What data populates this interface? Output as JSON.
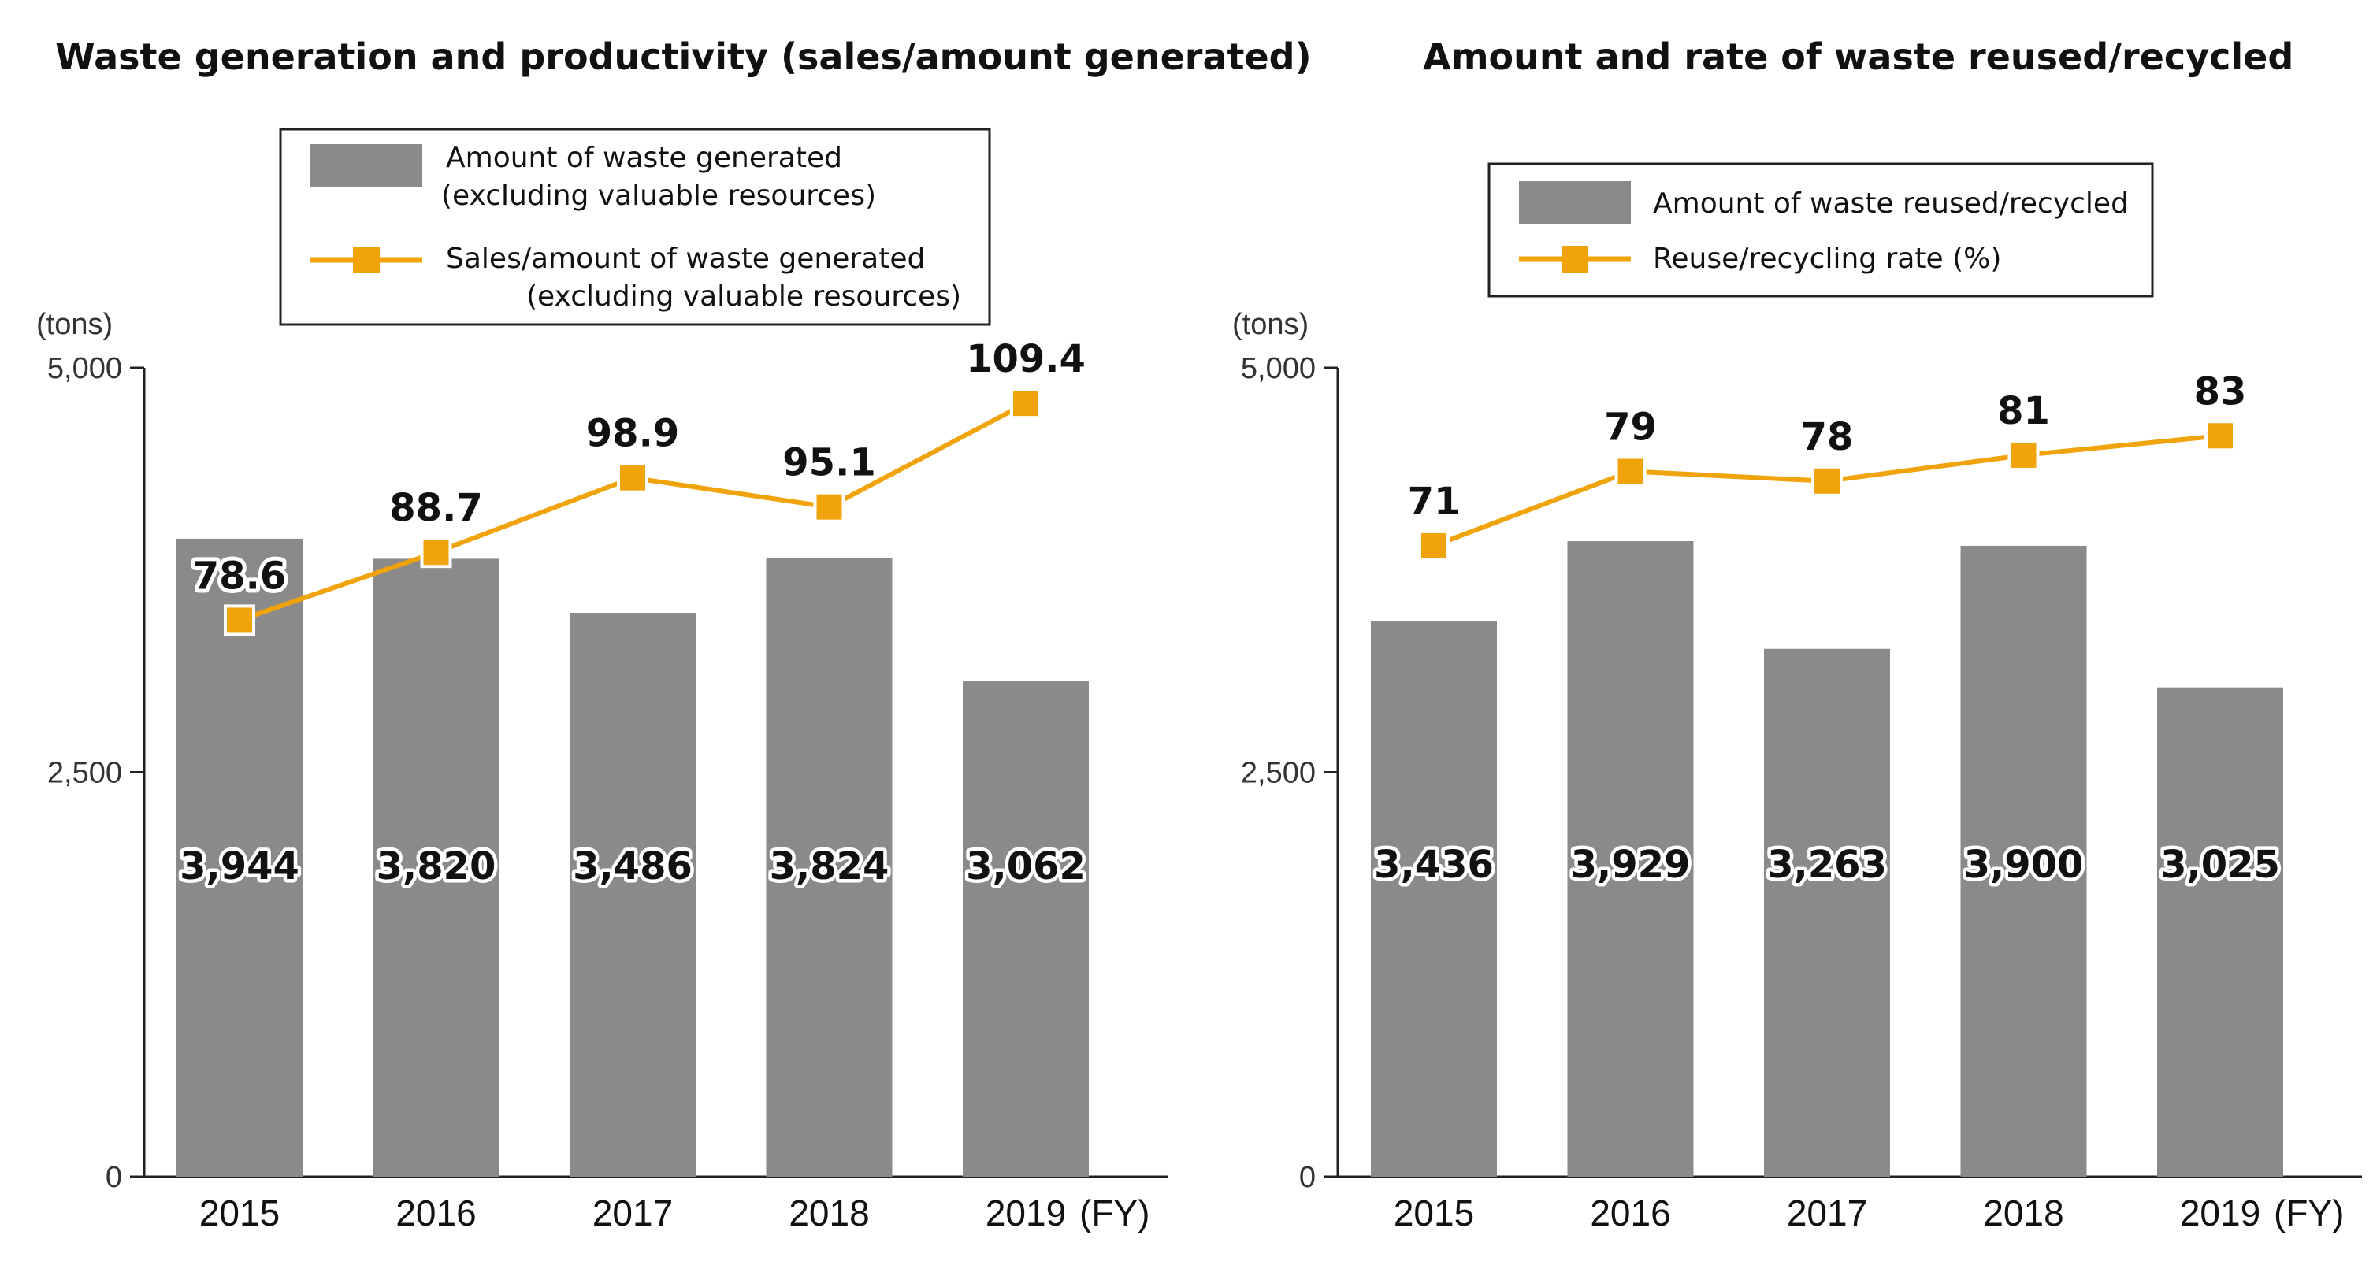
{
  "colors": {
    "bar": "#8a8a8a",
    "line": "#f0a30a",
    "axis": "#222222"
  },
  "chart_data": [
    {
      "type": "bar",
      "title": "Waste generation and productivity (sales/amount generated)",
      "ylabel": "(tons)",
      "xlabel": "(FY)",
      "ylim": [
        0,
        5000
      ],
      "yticks": [
        "0",
        "2,500",
        "5,000"
      ],
      "ytick_values": [
        0,
        2500,
        5000
      ],
      "categories": [
        "2015",
        "2016",
        "2017",
        "2018",
        "2019"
      ],
      "legend": {
        "bar_label_line1": "Amount of waste generated",
        "bar_label_line2": "(excluding valuable resources)",
        "line_label_line1": "Sales/amount of waste generated",
        "line_label_line2": "(excluding valuable resources)"
      },
      "series": [
        {
          "name": "Amount of waste generated (excluding valuable resources)",
          "kind": "bar",
          "values": [
            3944,
            3820,
            3486,
            3824,
            3062
          ],
          "labels": [
            "3,944",
            "3,820",
            "3,486",
            "3,824",
            "3,062"
          ]
        },
        {
          "name": "Sales/amount of waste generated (excluding valuable resources)",
          "kind": "line",
          "values": [
            78.6,
            88.7,
            98.9,
            95.1,
            109.4
          ],
          "labels": [
            "78.6",
            "88.7",
            "98.9",
            "95.1",
            "109.4"
          ],
          "plot_positions": [
            3440,
            3860,
            4320,
            4140,
            4780
          ]
        }
      ]
    },
    {
      "type": "bar",
      "title": "Amount and rate of waste reused/recycled",
      "ylabel": "(tons)",
      "xlabel": "(FY)",
      "ylim": [
        0,
        5000
      ],
      "yticks": [
        "0",
        "2,500",
        "5,000"
      ],
      "ytick_values": [
        0,
        2500,
        5000
      ],
      "categories": [
        "2015",
        "2016",
        "2017",
        "2018",
        "2019"
      ],
      "legend": {
        "bar_label_line1": "Amount of waste reused/recycled",
        "bar_label_line2": "",
        "line_label_line1": "Reuse/recycling rate (%)",
        "line_label_line2": ""
      },
      "series": [
        {
          "name": "Amount of waste reused/recycled",
          "kind": "bar",
          "values": [
            3436,
            3929,
            3263,
            3900,
            3025
          ],
          "labels": [
            "3,436",
            "3,929",
            "3,263",
            "3,900",
            "3,025"
          ]
        },
        {
          "name": "Reuse/recycling rate (%)",
          "kind": "line",
          "values": [
            71,
            79,
            78,
            81,
            83
          ],
          "labels": [
            "71",
            "79",
            "78",
            "81",
            "83"
          ],
          "plot_positions": [
            3900,
            4360,
            4300,
            4460,
            4580
          ]
        }
      ]
    }
  ]
}
